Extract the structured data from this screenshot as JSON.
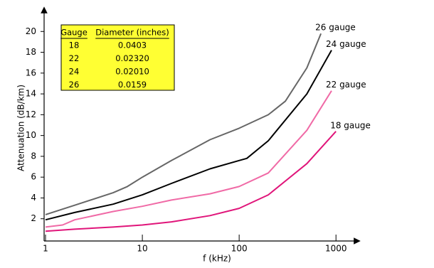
{
  "chart_data": {
    "type": "line",
    "x_label": "f (kHz)",
    "y_label": "Attenuation (dB/km)",
    "log_x": true,
    "xlim": [
      1,
      1600
    ],
    "xticks": [
      1,
      10,
      100,
      1000
    ],
    "ylim": [
      0,
      22
    ],
    "yticks": [
      2,
      4,
      6,
      8,
      10,
      12,
      14,
      16,
      18,
      20
    ],
    "series": [
      {
        "name": "26 gauge",
        "color": "#666666",
        "x": [
          1,
          2,
          5,
          7,
          10,
          20,
          50,
          100,
          200,
          300,
          500,
          700
        ],
        "values": [
          2.4,
          3.3,
          4.5,
          5.1,
          6.0,
          7.6,
          9.6,
          10.7,
          12.0,
          13.3,
          16.5,
          19.8
        ]
      },
      {
        "name": "24 gauge",
        "color": "#000000",
        "x": [
          1,
          2,
          5,
          10,
          20,
          50,
          100,
          120,
          200,
          500,
          900
        ],
        "values": [
          1.9,
          2.6,
          3.4,
          4.3,
          5.4,
          6.8,
          7.6,
          7.8,
          9.5,
          14,
          18.2
        ]
      },
      {
        "name": "22 gauge",
        "color": "#f06aa6",
        "x": [
          1,
          1.5,
          2,
          5,
          10,
          20,
          50,
          100,
          200,
          500,
          900
        ],
        "values": [
          1.2,
          1.4,
          1.9,
          2.7,
          3.2,
          3.8,
          4.4,
          5.1,
          6.4,
          10.5,
          14.3
        ]
      },
      {
        "name": "18 gauge",
        "color": "#e0157a",
        "x": [
          1,
          2,
          5,
          10,
          20,
          50,
          100,
          200,
          500,
          1000
        ],
        "values": [
          0.8,
          1.0,
          1.2,
          1.4,
          1.7,
          2.3,
          3.0,
          4.3,
          7.3,
          10.4
        ]
      }
    ],
    "table": {
      "background": "#ffff33",
      "columns": [
        "Gauge",
        "Diameter (inches)"
      ],
      "rows": [
        [
          "18",
          "0.0403"
        ],
        [
          "22",
          "0.02320"
        ],
        [
          "24",
          "0.02010"
        ],
        [
          "26",
          "0.0159"
        ]
      ]
    }
  }
}
